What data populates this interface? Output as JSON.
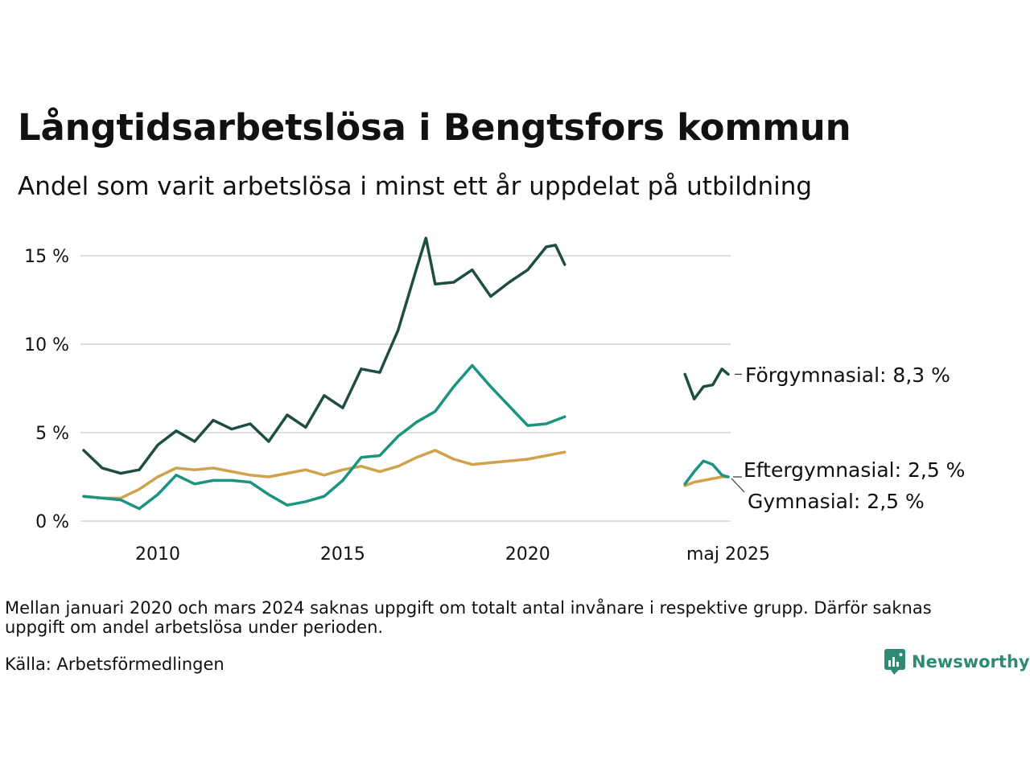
{
  "header": {
    "title": "Långtidsarbetslösa i Bengtsfors kommun",
    "subtitle": "Andel som varit arbetslösa i minst ett år uppdelat på utbildning"
  },
  "footer": {
    "note": "Mellan januari 2020 och mars 2024 saknas uppgift om totalt antal invånare i respektive grupp. Därför saknas uppgift om andel arbetslösa under perioden.",
    "source": "Källa: Arbetsförmedlingen",
    "brand": "Newsworthy"
  },
  "chart_data": {
    "type": "line",
    "title": "Långtidsarbetslösa i Bengtsfors kommun",
    "subtitle": "Andel som varit arbetslösa i minst ett år uppdelat på utbildning",
    "xlabel": "",
    "ylabel": "",
    "x_ticks": [
      2010,
      2015,
      2020,
      "maj 2025"
    ],
    "y_ticks": [
      "0 %",
      "5 %",
      "10 %",
      "15 %"
    ],
    "ylim": [
      0,
      16
    ],
    "grid": "horizontal",
    "legend": "direct labels at right",
    "series": [
      {
        "name": "Förgymnasial",
        "label": "Förgymnasial: 8,3 %",
        "color": "#1e4d44",
        "segments": [
          {
            "x": [
              2008.0,
              2008.5,
              2009.0,
              2009.5,
              2010.0,
              2010.5,
              2011.0,
              2011.5,
              2012.0,
              2012.5,
              2013.0,
              2013.5,
              2014.0,
              2014.5,
              2015.0,
              2015.5,
              2016.0,
              2016.5,
              2017.0,
              2017.25,
              2017.5,
              2018.0,
              2018.5,
              2019.0,
              2019.5,
              2020.0,
              2020.5,
              2020.75,
              2021.0
            ],
            "y": [
              4.0,
              3.0,
              2.7,
              2.9,
              4.3,
              5.1,
              4.5,
              5.7,
              5.2,
              5.5,
              4.5,
              6.0,
              5.3,
              7.1,
              6.4,
              8.6,
              8.4,
              10.8,
              14.3,
              16.0,
              13.4,
              13.5,
              14.2,
              12.7,
              13.5,
              14.2,
              15.5,
              15.6,
              14.5
            ]
          },
          {
            "x": [
              2024.25,
              2024.5,
              2024.75,
              2025.0,
              2025.25,
              2025.42
            ],
            "y": [
              8.3,
              6.9,
              7.6,
              7.7,
              8.6,
              8.3
            ]
          }
        ]
      },
      {
        "name": "Eftergymnasial",
        "label": "Eftergymnasial: 2,5 %",
        "color": "#1a9480",
        "segments": [
          {
            "x": [
              2008.0,
              2008.5,
              2009.0,
              2009.5,
              2010.0,
              2010.5,
              2011.0,
              2011.5,
              2012.0,
              2012.5,
              2013.0,
              2013.5,
              2014.0,
              2014.5,
              2015.0,
              2015.5,
              2016.0,
              2016.5,
              2017.0,
              2017.5,
              2018.0,
              2018.5,
              2019.0,
              2019.5,
              2020.0,
              2020.5,
              2021.0
            ],
            "y": [
              1.4,
              1.3,
              1.2,
              0.7,
              1.5,
              2.6,
              2.1,
              2.3,
              2.3,
              2.2,
              1.5,
              0.9,
              1.1,
              1.4,
              2.3,
              3.6,
              3.7,
              4.8,
              5.6,
              6.2,
              7.6,
              8.8,
              7.6,
              6.5,
              5.4,
              5.5,
              5.9
            ]
          },
          {
            "x": [
              2024.25,
              2024.5,
              2024.75,
              2025.0,
              2025.25,
              2025.42
            ],
            "y": [
              2.1,
              2.8,
              3.4,
              3.2,
              2.6,
              2.5
            ]
          }
        ]
      },
      {
        "name": "Gymnasial",
        "label": "Gymnasial: 2,5 %",
        "color": "#d1a24c",
        "segments": [
          {
            "x": [
              2008.0,
              2008.5,
              2009.0,
              2009.5,
              2010.0,
              2010.5,
              2011.0,
              2011.5,
              2012.0,
              2012.5,
              2013.0,
              2013.5,
              2014.0,
              2014.5,
              2015.0,
              2015.5,
              2016.0,
              2016.5,
              2017.0,
              2017.5,
              2018.0,
              2018.5,
              2019.0,
              2019.5,
              2020.0,
              2020.5,
              2021.0
            ],
            "y": [
              1.4,
              1.3,
              1.3,
              1.8,
              2.5,
              3.0,
              2.9,
              3.0,
              2.8,
              2.6,
              2.5,
              2.7,
              2.9,
              2.6,
              2.9,
              3.1,
              2.8,
              3.1,
              3.6,
              4.0,
              3.5,
              3.2,
              3.3,
              3.4,
              3.5,
              3.7,
              3.9
            ]
          },
          {
            "x": [
              2024.25,
              2024.5,
              2024.75,
              2025.0,
              2025.25,
              2025.42
            ],
            "y": [
              2.0,
              2.2,
              2.3,
              2.4,
              2.5,
              2.5
            ]
          }
        ]
      }
    ]
  }
}
